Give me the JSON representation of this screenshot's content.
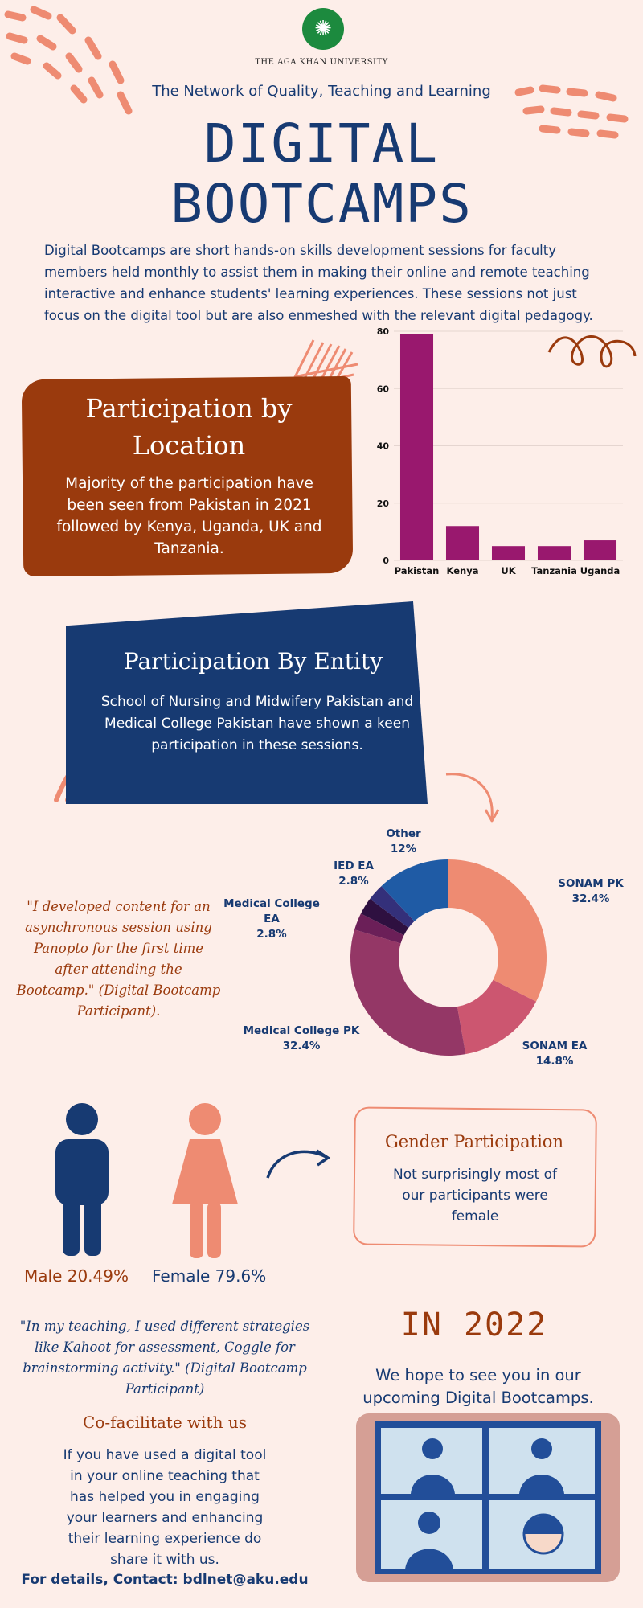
{
  "header": {
    "logo_glyph": "✺",
    "university": "THE AGA KHAN UNIVERSITY",
    "network": "The Network of Quality, Teaching and Learning",
    "title_line1": "DIGITAL",
    "title_line2": "BOOTCAMPS",
    "intro": "Digital Bootcamps are short hands-on skills development sessions for faculty members held monthly to assist them in making their online and remote teaching interactive and enhance students' learning experiences. These sessions not just focus on the digital tool but are also enmeshed with the relevant digital pedagogy."
  },
  "location": {
    "title": "Participation by Location",
    "text": "Majority of the participation have been seen from Pakistan in 2021 followed by Kenya, Uganda, UK and Tanzania."
  },
  "entity": {
    "title": "Participation By Entity",
    "text": "School of Nursing and Midwifery Pakistan and Medical College Pakistan have shown a keen participation in these sessions."
  },
  "quote1": "\"I developed content for an asynchronous session using Panopto for the first time after attending the Bootcamp.\" (Digital Bootcamp Participant).",
  "gender": {
    "male_label": "Male 20.49%",
    "female_label": "Female 79.6%",
    "male_value": 20.49,
    "female_value": 79.6,
    "box_title": "Gender Participation",
    "box_text": "Not surprisingly most of our participants were female"
  },
  "quote2": "\"In my teaching, I used different strategies like Kahoot for assessment, Coggle for brainstorming activity.\" (Digital Bootcamp Participant)",
  "cofacilitate": {
    "title": "Co-facilitate with us",
    "text": "If you have used a digital tool in your online teaching that has helped you in engaging your learners and enhancing their learning experience do share it with us.",
    "contact": "For details, Contact: bdlnet@aku.edu"
  },
  "year2022": {
    "title": "IN 2022",
    "text": "We hope to see you in our upcoming Digital Bootcamps."
  },
  "colors": {
    "navy": "#173a72",
    "rust": "#9a3a0d",
    "salmon": "#ee8b72",
    "purple": "#99186e",
    "background": "#fdeee9"
  },
  "chart_data": [
    {
      "type": "bar",
      "categories": [
        "Pakistan",
        "Kenya",
        "UK",
        "Tanzania",
        "Uganda"
      ],
      "values": [
        79,
        12,
        5,
        5,
        7
      ],
      "ylim": [
        0,
        80
      ],
      "yticks": [
        0,
        20,
        40,
        60,
        80
      ],
      "grid": true,
      "color": "#99186e"
    },
    {
      "type": "pie",
      "donut": true,
      "slices": [
        {
          "label": "SONAM PK",
          "pct_label": "32.4%",
          "value": 32.4,
          "color": "#ee8b72"
        },
        {
          "label": "SONAM EA",
          "pct_label": "14.8%",
          "value": 14.8,
          "color": "#cc5670"
        },
        {
          "label": "Medical College PK",
          "pct_label": "32.4%",
          "value": 32.4,
          "color": "#943766"
        },
        {
          "label": "Medical College EA",
          "pct_label": "2.8%",
          "value": 2.8,
          "color": "#6b1f58"
        },
        {
          "label": "IED EA",
          "pct_label": "2.8%",
          "value": 2.8,
          "color": "#2e1040"
        },
        {
          "label": "",
          "pct_label": "",
          "value": 2.8,
          "color": "#34307a"
        },
        {
          "label": "Other",
          "pct_label": "12%",
          "value": 12,
          "color": "#1f5ba5"
        }
      ]
    }
  ]
}
